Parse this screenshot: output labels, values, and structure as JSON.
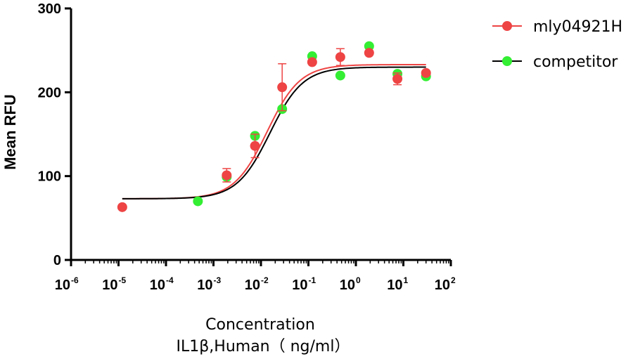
{
  "chart_data": {
    "type": "scatter",
    "xscale": "log10",
    "xlim": [
      1e-06,
      100
    ],
    "ylim": [
      0,
      300
    ],
    "x_ticks": [
      {
        "base": "10",
        "exp": "-6",
        "value": 1e-06
      },
      {
        "base": "10",
        "exp": "-5",
        "value": 1e-05
      },
      {
        "base": "10",
        "exp": "-4",
        "value": 0.0001
      },
      {
        "base": "10",
        "exp": "-3",
        "value": 0.001
      },
      {
        "base": "10",
        "exp": "-2",
        "value": 0.01
      },
      {
        "base": "10",
        "exp": "-1",
        "value": 0.1
      },
      {
        "base": "10",
        "exp": "0",
        "value": 1
      },
      {
        "base": "10",
        "exp": "1",
        "value": 10
      },
      {
        "base": "10",
        "exp": "2",
        "value": 100
      }
    ],
    "y_ticks": [
      {
        "label": "0",
        "value": 0
      },
      {
        "label": "100",
        "value": 100
      },
      {
        "label": "200",
        "value": 200
      },
      {
        "label": "300",
        "value": 300
      }
    ],
    "ylabel": "Mean RFU",
    "xlabel_line1": "Concentration",
    "xlabel_line2": "IL1β,Human（ ng/ml）",
    "legend_position": "top-right",
    "series": [
      {
        "name": "mly04921H",
        "color": "#ee4444",
        "curve_color": "#ee4444",
        "fit": {
          "bottom": 73,
          "top": 233,
          "ec50": 0.0135,
          "hill": 1.25
        },
        "points": [
          {
            "x": 1.2e-05,
            "y": 63
          },
          {
            "x": 0.0019,
            "y": 101,
            "err": 8
          },
          {
            "x": 0.0075,
            "y": 136,
            "err": 14
          },
          {
            "x": 0.028,
            "y": 206,
            "err": 28
          },
          {
            "x": 0.12,
            "y": 236
          },
          {
            "x": 0.47,
            "y": 242,
            "err": 10
          },
          {
            "x": 1.9,
            "y": 247
          },
          {
            "x": 7.5,
            "y": 216,
            "err": 7
          },
          {
            "x": 30,
            "y": 223
          }
        ]
      },
      {
        "name": "competitor",
        "color": "#33ee33",
        "curve_color": "#000000",
        "fit": {
          "bottom": 73,
          "top": 230,
          "ec50": 0.0155,
          "hill": 1.25
        },
        "points": [
          {
            "x": 0.00047,
            "y": 70
          },
          {
            "x": 0.0019,
            "y": 99
          },
          {
            "x": 0.0075,
            "y": 148
          },
          {
            "x": 0.028,
            "y": 180
          },
          {
            "x": 0.12,
            "y": 243
          },
          {
            "x": 0.47,
            "y": 220
          },
          {
            "x": 1.9,
            "y": 255
          },
          {
            "x": 7.5,
            "y": 222
          },
          {
            "x": 30,
            "y": 219
          }
        ]
      }
    ]
  }
}
